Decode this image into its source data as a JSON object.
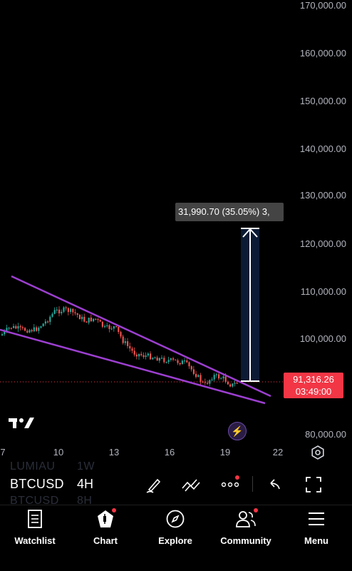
{
  "chart": {
    "symbol": "BTCUSD",
    "interval": "4H",
    "ghost_rows": [
      {
        "symbol": "LUMIAU",
        "interval": "1W"
      },
      {
        "symbol": "BTCUSD",
        "interval": "8H"
      }
    ],
    "y_axis_labels": [
      "170,000.00",
      "160,000.00",
      "150,000.00",
      "140,000.00",
      "130,000.00",
      "120,000.00",
      "110,000.00",
      "100,000.00",
      "80,000.00"
    ],
    "x_axis_labels": [
      "7",
      "10",
      "13",
      "16",
      "19",
      "22"
    ],
    "current_price": "91,316.26",
    "countdown": "03:49:00",
    "measure_label": "31,990.70 (35.05%) 3,",
    "colors": {
      "up": "#26a69a",
      "down": "#ef5350",
      "trendline": "#9c3fd0",
      "price_tag": "#f23645",
      "measure_fill": "#0c1a33"
    }
  },
  "toolbar": {
    "icons": [
      "pencil-icon",
      "indicators-icon",
      "more-icon",
      "undo-icon",
      "fullscreen-icon"
    ]
  },
  "nav": {
    "items": [
      {
        "label": "Watchlist",
        "icon": "watchlist-icon"
      },
      {
        "label": "Chart",
        "icon": "chart-icon"
      },
      {
        "label": "Explore",
        "icon": "compass-icon"
      },
      {
        "label": "Community",
        "icon": "community-icon"
      },
      {
        "label": "Menu",
        "icon": "menu-icon"
      }
    ]
  }
}
